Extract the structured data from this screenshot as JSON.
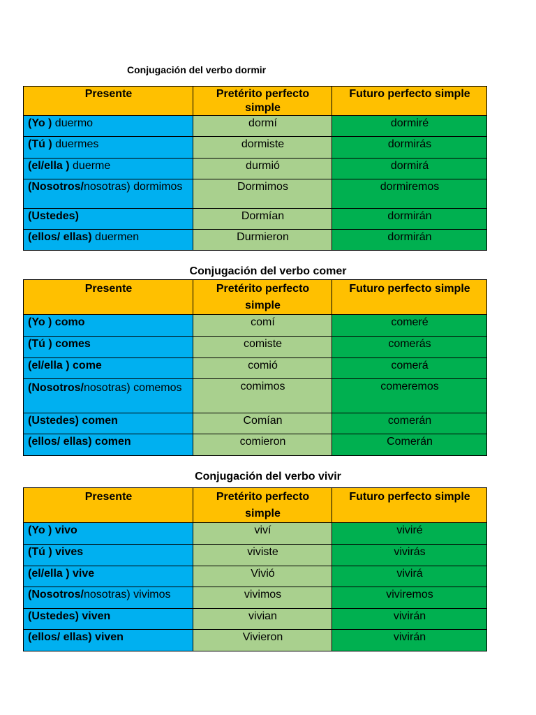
{
  "headers": {
    "presente": "Presente",
    "preterito": "Pretérito perfecto simple",
    "futuro": "Futuro perfecto simple"
  },
  "tables": [
    {
      "title": "Conjugación del verbo dormir",
      "rows": [
        {
          "subject": "(Yo )",
          "verb": " duermo",
          "preterito": "dormí",
          "futuro": "dormiré"
        },
        {
          "subject": "(Tú )",
          "verb": " duermes",
          "preterito": "dormiste",
          "futuro": "dormirás"
        },
        {
          "subject": "(el/ella )",
          "verb": " duerme",
          "preterito": "durmió",
          "futuro": "dormirá"
        },
        {
          "subject": "(Nosotros/",
          "verb": "nosotras) dormimos",
          "preterito": "Dormimos",
          "futuro": "dormiremos"
        },
        {
          "subject": "(Ustedes)",
          "verb": "",
          "preterito": "Dormían",
          "futuro": "dormirán"
        },
        {
          "subject": "(ellos/ ellas)",
          "verb": " duermen",
          "preterito": "Durmieron",
          "futuro": "dormirán"
        }
      ]
    },
    {
      "title": "Conjugación del verbo comer",
      "rows": [
        {
          "subject": "(Yo ) como",
          "verb": "",
          "preterito": "comí",
          "futuro": "comeré"
        },
        {
          "subject": "(Tú ) comes",
          "verb": "",
          "preterito": "comiste",
          "futuro": "comerás"
        },
        {
          "subject": "(el/ella ) come",
          "verb": "",
          "preterito": "comió",
          "futuro": "comerá"
        },
        {
          "subject": "(Nosotros/",
          "verb": "nosotras) comemos",
          "preterito": "comimos",
          "futuro": "comeremos"
        },
        {
          "subject": "(Ustedes) comen",
          "verb": "",
          "preterito": "Comían",
          "futuro": "comerán"
        },
        {
          "subject": "(ellos/ ellas) comen",
          "verb": "",
          "preterito": "comieron",
          "futuro": "Comerán"
        }
      ]
    },
    {
      "title": "Conjugación del verbo vivir",
      "rows": [
        {
          "subject": "(Yo ) vivo",
          "verb": "",
          "preterito": "viví",
          "futuro": "viviré"
        },
        {
          "subject": "(Tú ) vives",
          "verb": "",
          "preterito": "viviste",
          "futuro": "vivirás"
        },
        {
          "subject": "(el/ella ) vive",
          "verb": "",
          "preterito": "Vivió",
          "futuro": "vivirá"
        },
        {
          "subject": "(Nosotros/",
          "verb": "nosotras) vivimos",
          "preterito": "vivimos",
          "futuro": "viviremos"
        },
        {
          "subject": "(Ustedes)  viven",
          "verb": "",
          "preterito": "vivian",
          "futuro": "vivirán"
        },
        {
          "subject": "(ellos/ ellas) viven",
          "verb": "",
          "preterito": "Vivieron",
          "futuro": "vivirán"
        }
      ]
    }
  ],
  "colors": {
    "header": "#ffc000",
    "presente": "#00b0f0",
    "preterito": "#a9d08e",
    "futuro": "#00b050"
  }
}
